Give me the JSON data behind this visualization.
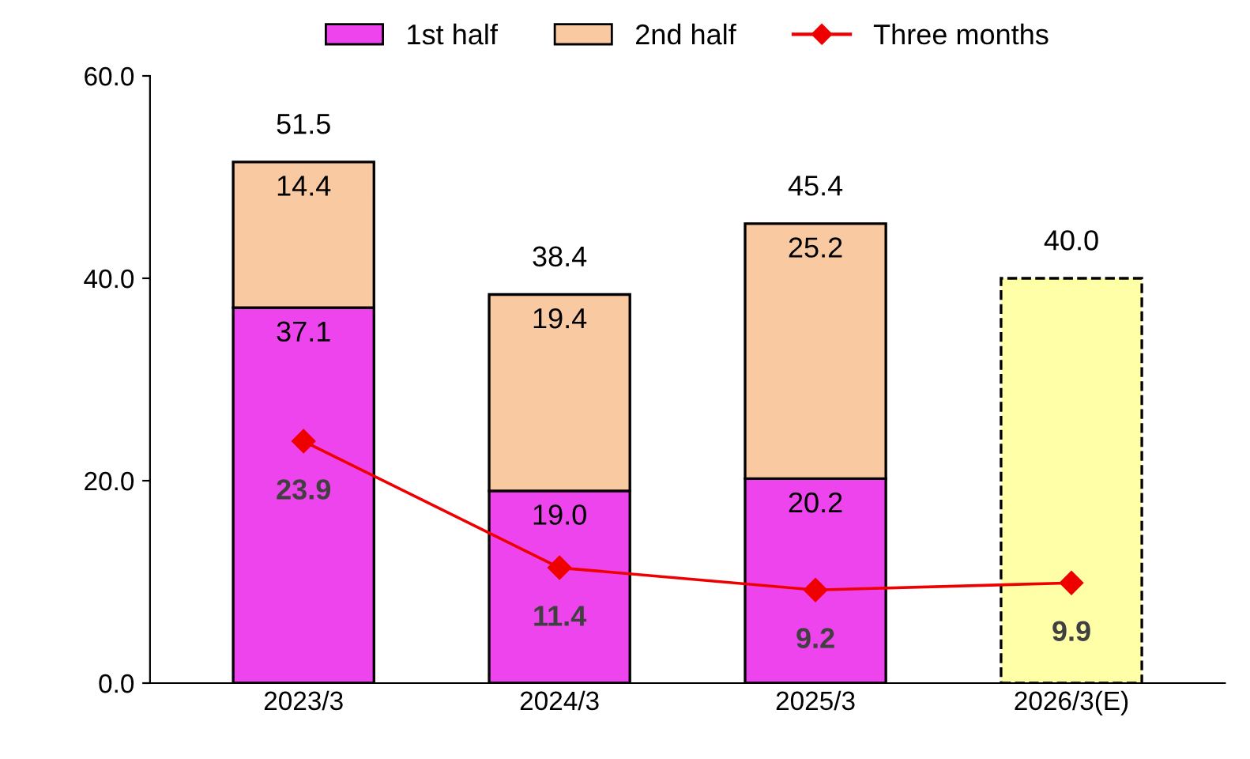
{
  "chart_data": {
    "type": "bar",
    "stacked": true,
    "categories": [
      "2023/3",
      "2024/3",
      "2025/3",
      "2026/3(E)"
    ],
    "series": [
      {
        "name": "1st half",
        "color": "#ee44ee",
        "values": [
          37.1,
          19.0,
          20.2,
          null
        ],
        "value_labels": [
          "37.1",
          "19.0",
          "20.2",
          null
        ]
      },
      {
        "name": "2nd half",
        "color": "#f9c9a2",
        "values": [
          14.4,
          19.4,
          25.2,
          null
        ],
        "value_labels": [
          "14.4",
          "19.4",
          "25.2",
          null
        ]
      },
      {
        "color": "#ffffa8",
        "values": [
          null,
          null,
          null,
          40.0
        ],
        "line_style": "dashed"
      },
      {
        "name": "Three months",
        "type": "line",
        "color": "#ee0000",
        "marker": "diamond",
        "values": [
          23.9,
          11.4,
          9.2,
          9.9
        ],
        "value_labels": [
          "23.9",
          "11.4",
          "9.2",
          "9.9"
        ]
      }
    ],
    "totals": [
      "51.5",
      "38.4",
      "45.4",
      "40.0"
    ],
    "ylim": [
      0,
      60
    ],
    "yticks": [
      {
        "value": 0,
        "label": "0.0"
      },
      {
        "value": 20,
        "label": "20.0"
      },
      {
        "value": 40,
        "label": "40.0"
      },
      {
        "value": 60,
        "label": "60.0"
      }
    ],
    "grid": false,
    "legend": "top"
  }
}
